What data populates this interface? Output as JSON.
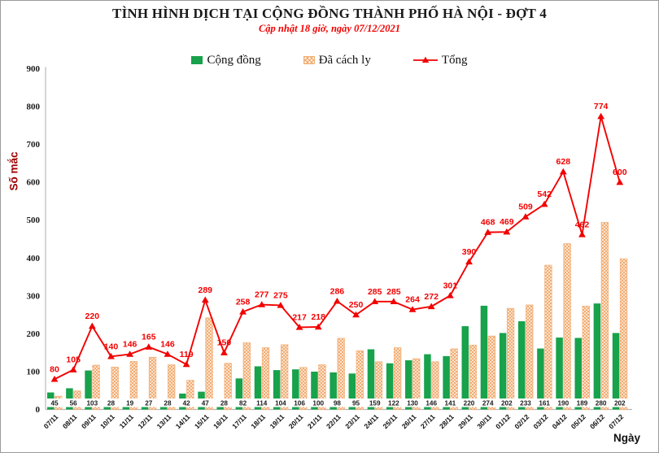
{
  "header": {
    "title": "TÌNH HÌNH DỊCH TẠI CỘNG ĐỒNG THÀNH PHỐ HÀ NỘI - ĐỢT 4",
    "subtitle": "Cập nhật 18 giờ, ngày 07/12/2021"
  },
  "legend": {
    "community": "Cộng đồng",
    "quarantine": "Đã cách ly",
    "total": "Tổng"
  },
  "axes": {
    "y_title": "Số mắc",
    "x_title": "Ngày"
  },
  "colors": {
    "community_green": "#17a24b",
    "quarantine_fill": "#fdf2e5",
    "quarantine_hatch": "#f0a263",
    "quarantine_border": "#f2b079",
    "total_red": "#f20000",
    "axis_gray": "#b8b8b8",
    "text_dark": "#1a1a1a"
  },
  "chart_data": {
    "type": "bar",
    "subtype": "grouped-bars-with-line",
    "title": "TÌNH HÌNH DỊCH TẠI CỘNG ĐỒNG THÀNH PHỐ HÀ NỘI - ĐỢT 4",
    "subtitle": "Cập nhật 18 giờ, ngày 07/12/2021",
    "xlabel": "Ngày",
    "ylabel": "Số mắc",
    "ylim": [
      0,
      900
    ],
    "ytick_step": 100,
    "grid": false,
    "legend_position": "top",
    "categories": [
      "07/11",
      "08/11",
      "09/11",
      "10/11",
      "11/11",
      "12/11",
      "13/11",
      "14/11",
      "15/11",
      "16/11",
      "17/11",
      "18/11",
      "19/11",
      "20/11",
      "21/11",
      "22/11",
      "23/11",
      "24/11",
      "25/11",
      "26/11",
      "27/11",
      "28/11",
      "29/11",
      "30/11",
      "01/12",
      "02/12",
      "03/12",
      "04/12",
      "05/12",
      "06/12",
      "07/12"
    ],
    "series": [
      {
        "name": "Cộng đồng",
        "type": "bar",
        "style": "solid",
        "value_labels": "base",
        "values": [
          45,
          56,
          103,
          28,
          19,
          27,
          28,
          42,
          47,
          28,
          82,
          114,
          104,
          106,
          100,
          98,
          95,
          159,
          122,
          130,
          146,
          141,
          220,
          274,
          202,
          233,
          161,
          190,
          189,
          280,
          202
        ]
      },
      {
        "name": "Đã cách ly",
        "type": "bar",
        "style": "hatch",
        "value_labels": "none",
        "values": [
          35,
          49,
          117,
          112,
          127,
          138,
          118,
          77,
          242,
          122,
          176,
          163,
          171,
          111,
          118,
          188,
          155,
          126,
          163,
          134,
          126,
          160,
          170,
          194,
          267,
          276,
          381,
          438,
          273,
          494,
          398
        ]
      },
      {
        "name": "Tổng",
        "type": "line",
        "marker": "triangle",
        "value_labels": "above",
        "values": [
          80,
          105,
          220,
          140,
          146,
          165,
          146,
          119,
          289,
          150,
          258,
          277,
          275,
          217,
          218,
          286,
          250,
          285,
          285,
          264,
          272,
          301,
          390,
          468,
          469,
          509,
          542,
          628,
          462,
          774,
          600
        ]
      }
    ]
  }
}
